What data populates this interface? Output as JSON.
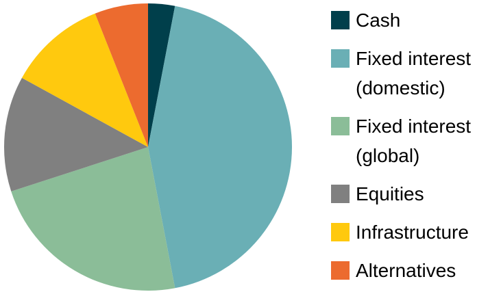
{
  "chart_data": {
    "type": "pie",
    "categories": [
      "Cash",
      "Fixed interest (domestic)",
      "Fixed interest (global)",
      "Equities",
      "Infrastructure",
      "Alternatives"
    ],
    "values": [
      3,
      44,
      23,
      13,
      11,
      6
    ],
    "colors": [
      "#003f4b",
      "#6aafb5",
      "#8bbd98",
      "#808080",
      "#ffc90e",
      "#ec6b2f"
    ],
    "legend": "right"
  }
}
